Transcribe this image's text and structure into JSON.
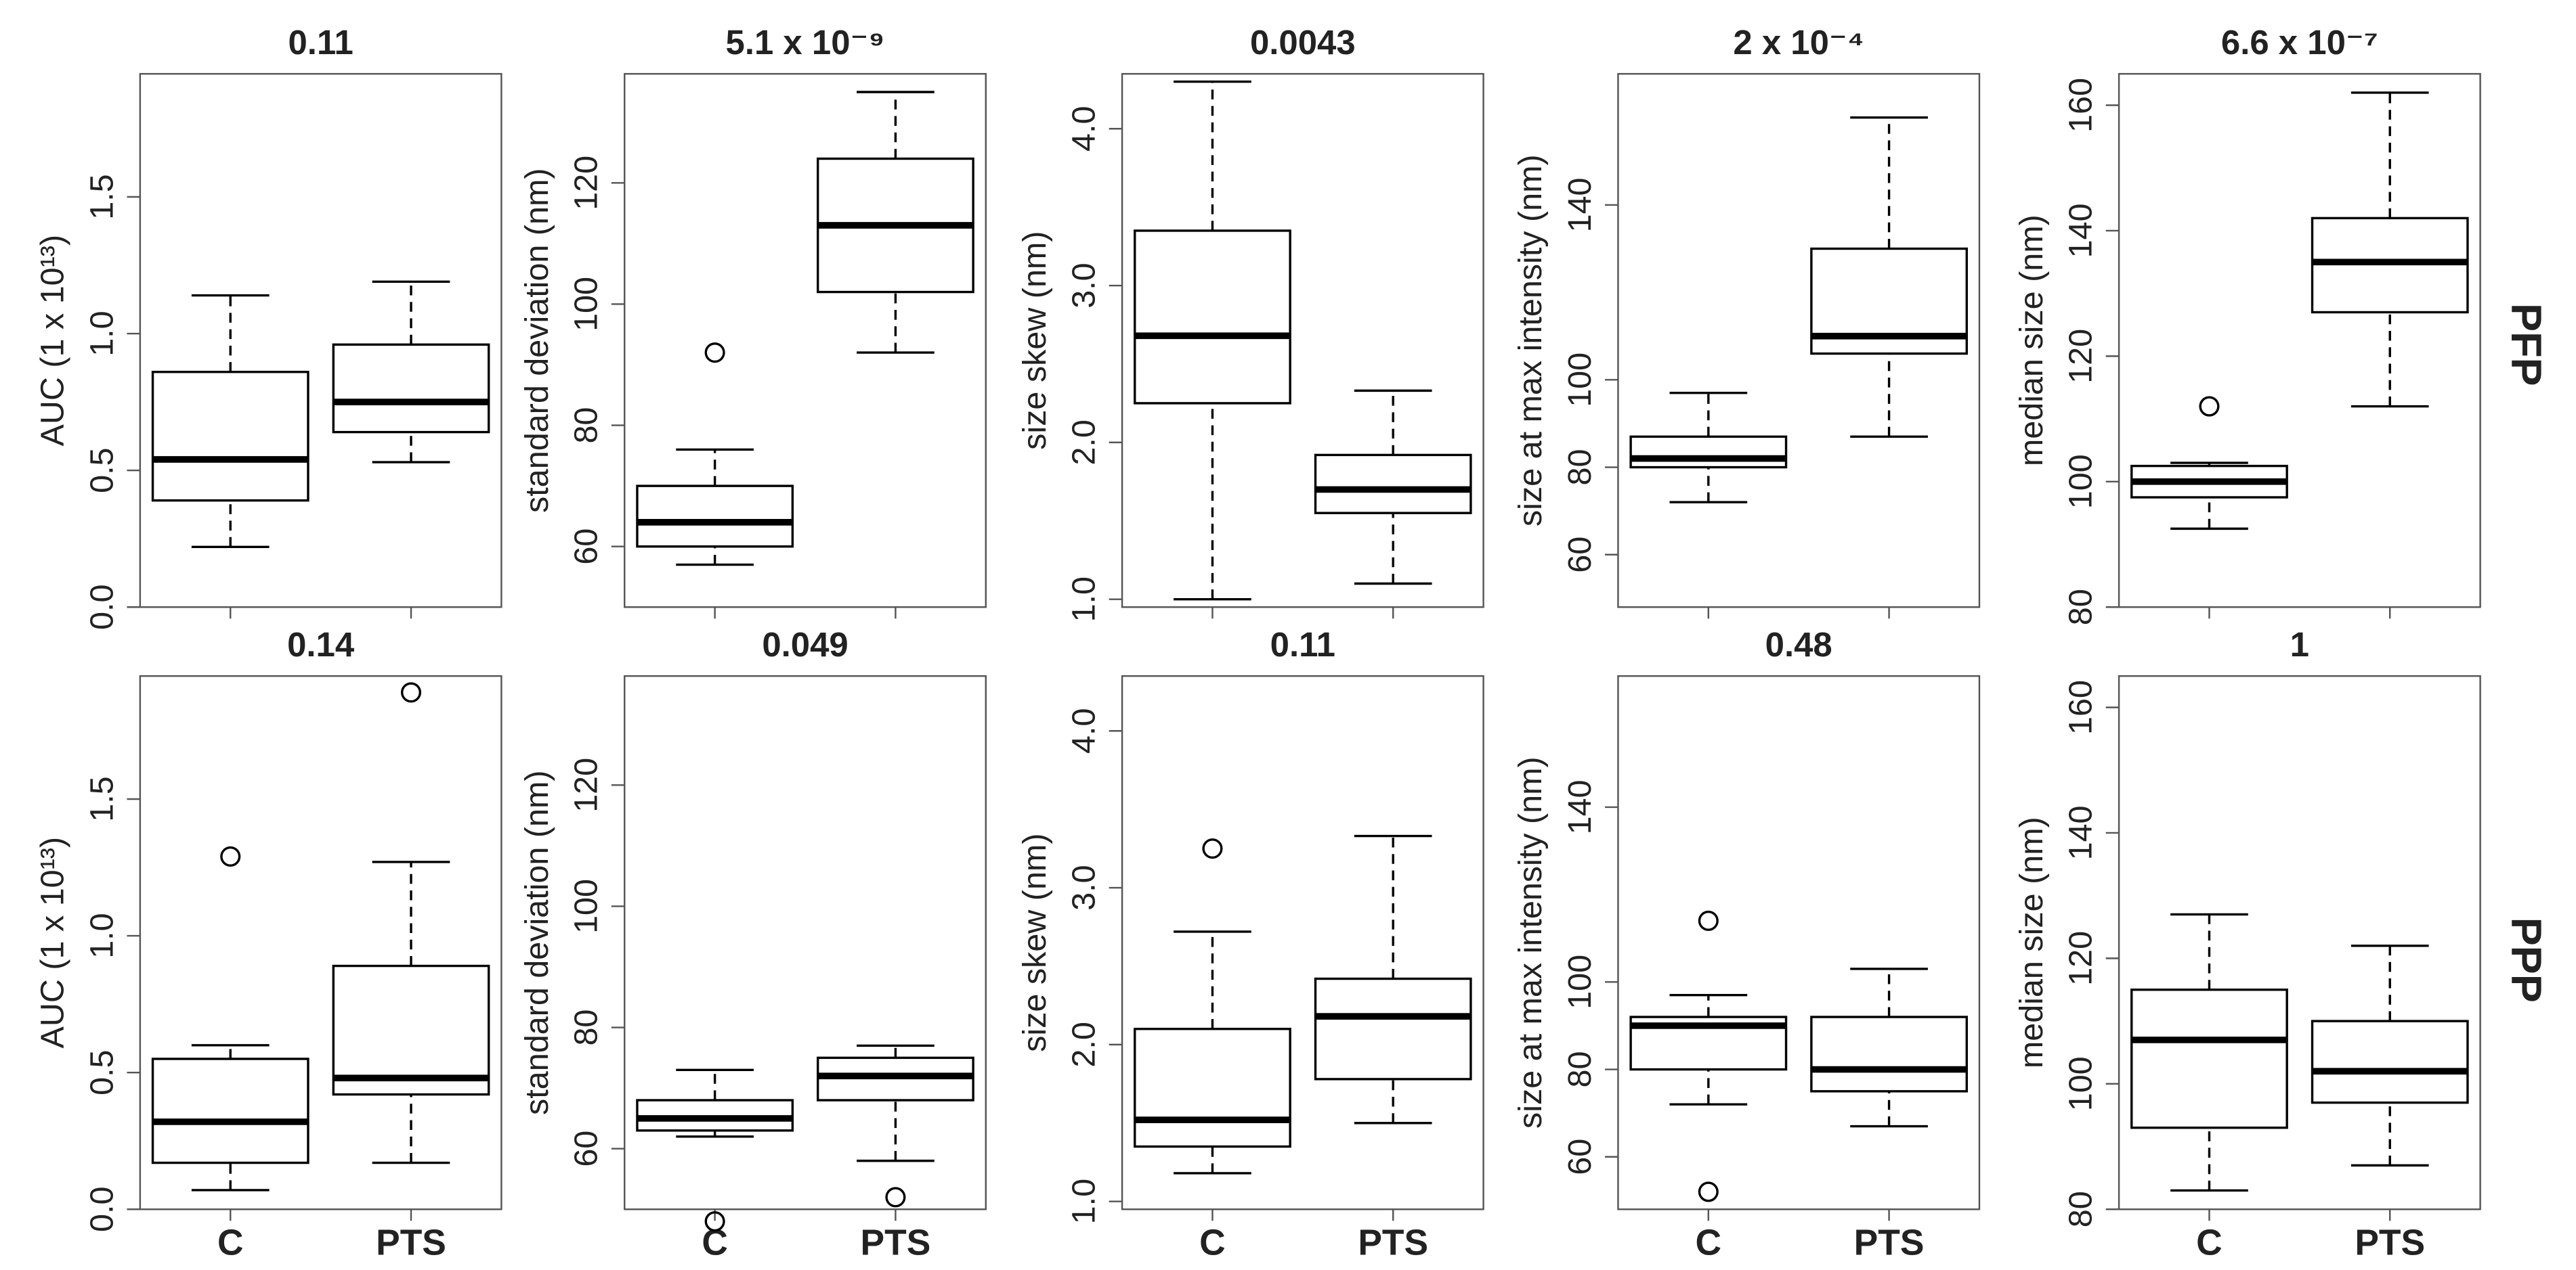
{
  "row_labels": [
    "PFP",
    "PPP"
  ],
  "chart_data": [
    {
      "type": "box",
      "title": "0.11",
      "y_label": "AUC (1 x 10¹³)",
      "ylim": [
        0,
        1.95
      ],
      "yticks": [
        {
          "value": 0,
          "label": "0.0"
        },
        {
          "value": 0.5,
          "label": "0.5"
        },
        {
          "value": 1,
          "label": "1.0"
        },
        {
          "value": 1.5,
          "label": "1.5"
        }
      ],
      "boxes": [
        {
          "min": 0.22,
          "q1": 0.39,
          "median": 0.54,
          "q3": 0.86,
          "max": 1.14,
          "outliers": []
        },
        {
          "min": 0.53,
          "q1": 0.64,
          "median": 0.75,
          "q3": 0.96,
          "max": 1.19,
          "outliers": []
        }
      ]
    },
    {
      "type": "box",
      "title": "5.1 x 10⁻⁹",
      "y_label": "standard deviation (nm)",
      "ylim": [
        50,
        138
      ],
      "yticks": [
        60,
        80,
        100,
        120
      ],
      "boxes": [
        {
          "min": 57,
          "q1": 60,
          "median": 64,
          "q3": 70,
          "max": 76,
          "outliers": [
            92
          ]
        },
        {
          "min": 92,
          "q1": 102,
          "median": 113,
          "q3": 124,
          "max": 135,
          "outliers": []
        }
      ]
    },
    {
      "type": "box",
      "title": "0.0043",
      "y_label": "size skew (nm)",
      "ylim": [
        0.95,
        4.35
      ],
      "yticks": [
        {
          "value": 1,
          "label": "1.0"
        },
        {
          "value": 2,
          "label": "2.0"
        },
        {
          "value": 3,
          "label": "3.0"
        },
        {
          "value": 4,
          "label": "4.0"
        }
      ],
      "boxes": [
        {
          "min": 1.0,
          "q1": 2.25,
          "median": 2.68,
          "q3": 3.35,
          "max": 4.3,
          "outliers": []
        },
        {
          "min": 1.1,
          "q1": 1.55,
          "median": 1.7,
          "q3": 1.92,
          "max": 2.33,
          "outliers": []
        }
      ]
    },
    {
      "type": "box",
      "title": "2 x 10⁻⁴",
      "y_label": "size at max intensity (nm)",
      "ylim": [
        48,
        170
      ],
      "yticks": [
        60,
        80,
        100,
        140
      ],
      "boxes": [
        {
          "min": 72,
          "q1": 80,
          "median": 82,
          "q3": 87,
          "max": 97,
          "outliers": []
        },
        {
          "min": 87,
          "q1": 106,
          "median": 110,
          "q3": 130,
          "max": 160,
          "outliers": []
        }
      ]
    },
    {
      "type": "box",
      "title": "6.6 x 10⁻⁷",
      "y_label": "median size (nm)",
      "ylim": [
        80,
        165
      ],
      "yticks": [
        80,
        100,
        120,
        140,
        160
      ],
      "boxes": [
        {
          "min": 92.5,
          "q1": 97.5,
          "median": 100,
          "q3": 102.5,
          "max": 103,
          "outliers": [
            112
          ]
        },
        {
          "min": 112,
          "q1": 127,
          "median": 135,
          "q3": 142,
          "max": 162,
          "outliers": []
        }
      ]
    },
    {
      "type": "box",
      "title": "0.14",
      "y_label": "AUC (1 x 10¹³)",
      "ylim": [
        0,
        1.95
      ],
      "yticks": [
        {
          "value": 0,
          "label": "0.0"
        },
        {
          "value": 0.5,
          "label": "0.5"
        },
        {
          "value": 1,
          "label": "1.0"
        },
        {
          "value": 1.5,
          "label": "1.5"
        }
      ],
      "categories": [
        "C",
        "PTS"
      ],
      "boxes": [
        {
          "min": 0.07,
          "q1": 0.17,
          "median": 0.32,
          "q3": 0.55,
          "max": 0.6,
          "outliers": [
            1.29
          ]
        },
        {
          "min": 0.17,
          "q1": 0.42,
          "median": 0.48,
          "q3": 0.89,
          "max": 1.27,
          "outliers": [
            1.89
          ]
        }
      ]
    },
    {
      "type": "box",
      "title": "0.049",
      "y_label": "standard deviation (nm)",
      "ylim": [
        50,
        138
      ],
      "yticks": [
        60,
        80,
        100,
        120
      ],
      "categories": [
        "C",
        "PTS"
      ],
      "boxes": [
        {
          "min": 62,
          "q1": 63,
          "median": 65,
          "q3": 68,
          "max": 73,
          "outliers": [
            48
          ]
        },
        {
          "min": 58,
          "q1": 68,
          "median": 72,
          "q3": 75,
          "max": 77,
          "outliers": [
            52
          ]
        }
      ]
    },
    {
      "type": "box",
      "title": "0.11",
      "y_label": "size skew (nm)",
      "ylim": [
        0.95,
        4.35
      ],
      "yticks": [
        {
          "value": 1,
          "label": "1.0"
        },
        {
          "value": 2,
          "label": "2.0"
        },
        {
          "value": 3,
          "label": "3.0"
        },
        {
          "value": 4,
          "label": "4.0"
        }
      ],
      "categories": [
        "C",
        "PTS"
      ],
      "boxes": [
        {
          "min": 1.18,
          "q1": 1.35,
          "median": 1.52,
          "q3": 2.1,
          "max": 2.72,
          "outliers": [
            3.25
          ]
        },
        {
          "min": 1.5,
          "q1": 1.78,
          "median": 2.18,
          "q3": 2.42,
          "max": 3.33,
          "outliers": []
        }
      ]
    },
    {
      "type": "box",
      "title": "0.48",
      "y_label": "size at max intensity (nm)",
      "ylim": [
        48,
        170
      ],
      "yticks": [
        60,
        80,
        100,
        140
      ],
      "categories": [
        "C",
        "PTS"
      ],
      "boxes": [
        {
          "min": 72,
          "q1": 80,
          "median": 90,
          "q3": 92,
          "max": 97,
          "outliers": [
            52,
            114
          ]
        },
        {
          "min": 67,
          "q1": 75,
          "median": 80,
          "q3": 92,
          "max": 103,
          "outliers": []
        }
      ]
    },
    {
      "type": "box",
      "title": "1",
      "y_label": "median size (nm)",
      "ylim": [
        80,
        165
      ],
      "yticks": [
        80,
        100,
        120,
        140,
        160
      ],
      "categories": [
        "C",
        "PTS"
      ],
      "boxes": [
        {
          "min": 83,
          "q1": 93,
          "median": 107,
          "q3": 115,
          "max": 127,
          "outliers": []
        },
        {
          "min": 87,
          "q1": 97,
          "median": 102,
          "q3": 110,
          "max": 122,
          "outliers": []
        }
      ]
    }
  ]
}
